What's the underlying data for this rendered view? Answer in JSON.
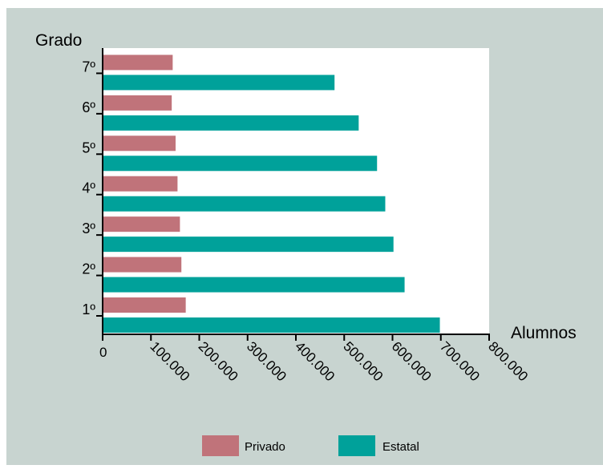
{
  "chart_data": {
    "type": "bar",
    "orientation": "horizontal",
    "ylabel": "Grado",
    "xlabel": "Alumnos",
    "categories": [
      "1º",
      "2º",
      "3º",
      "4º",
      "5º",
      "6º",
      "7º"
    ],
    "xlim": [
      0,
      800000
    ],
    "xticks": [
      0,
      100000,
      200000,
      300000,
      400000,
      500000,
      600000,
      700000,
      800000
    ],
    "xtick_labels": [
      "0",
      "100.000",
      "200.000",
      "300.000",
      "400.000",
      "500.000",
      "600.000",
      "700.000",
      "800.000"
    ],
    "series": [
      {
        "name": "Privado",
        "color": "#c0737a",
        "values": [
          172000,
          163000,
          160000,
          155000,
          151000,
          143000,
          145000
        ]
      },
      {
        "name": "Estatal",
        "color": "#00a19a",
        "values": [
          698000,
          625000,
          602000,
          585000,
          568000,
          530000,
          480000
        ]
      }
    ],
    "legend_position": "bottom",
    "background_color": "#c8d4d0",
    "plot_background_color": "#ffffff",
    "grid": false
  }
}
